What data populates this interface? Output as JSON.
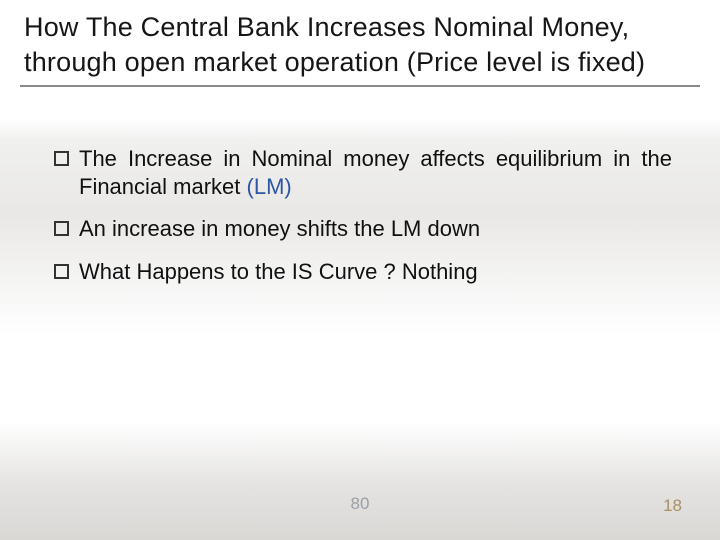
{
  "title": "How  The Central Bank Increases Nominal Money, through open market operation (Price level is fixed)",
  "bullets": {
    "b1": {
      "pre": "The Increase in Nominal money affects equilibrium in the Financial market ",
      "lm": "(LM)"
    },
    "b2": "An increase in money shifts the LM down",
    "b3": "What Happens to the IS Curve ? Nothing"
  },
  "page_center": "80",
  "page_right": "18",
  "colors": {
    "lm": "#2d57a3",
    "title_rule": "#8a8a88",
    "page_center": "#9aa0a6",
    "page_right": "#a98f63"
  },
  "fontsizes": {
    "title": 27,
    "body": 22,
    "pageno": 17
  }
}
